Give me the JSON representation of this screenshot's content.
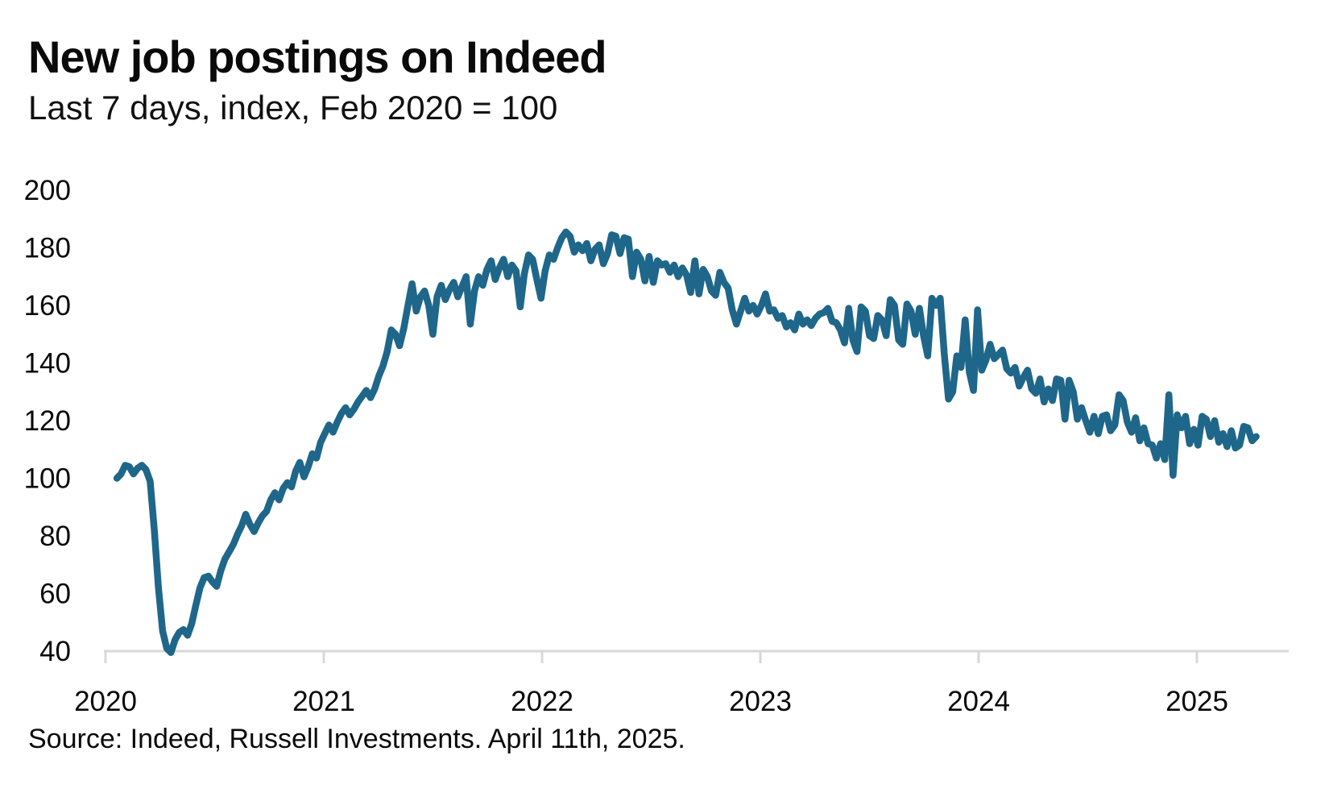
{
  "header": {
    "title": "New job postings on Indeed",
    "subtitle": "Last 7 days, index, Feb 2020 = 100"
  },
  "footer": {
    "source": "Source: Indeed, Russell Investments. April 11th, 2025."
  },
  "colors": {
    "line": "#1F678A",
    "axis": "#D8D8D8",
    "text": "#0A0A0A"
  },
  "chart_data": {
    "type": "line",
    "title": "New job postings on Indeed",
    "subtitle": "Last 7 days, index, Feb 2020 = 100",
    "xlabel": "",
    "ylabel": "",
    "grid": false,
    "legend": null,
    "xlim": [
      2020,
      2025.45
    ],
    "ylim": [
      40,
      200
    ],
    "yticks": [
      40,
      60,
      80,
      100,
      120,
      140,
      160,
      180,
      200
    ],
    "xticks": [
      2020,
      2021,
      2022,
      2023,
      2024,
      2025
    ],
    "series_name": "New job postings index (7-day, Feb 2020 = 100)",
    "x_start": 2020.052,
    "x_step": 0.01905,
    "values": [
      100,
      101.5,
      104.5,
      104,
      101.5,
      103.5,
      104.5,
      103,
      99,
      82,
      62,
      47,
      41,
      39.5,
      44,
      46.5,
      47.5,
      45.5,
      49.5,
      56,
      62,
      65.5,
      66,
      64,
      62.5,
      68,
      72,
      74.5,
      77,
      80.5,
      83.5,
      87.5,
      84,
      81.5,
      84.5,
      87,
      88.5,
      92.5,
      95,
      92.5,
      96.5,
      98.5,
      97,
      102.5,
      105.5,
      100.5,
      104,
      108.5,
      107,
      112.5,
      115.5,
      118.5,
      116,
      119.5,
      122.5,
      124.5,
      122,
      124,
      126.5,
      128.5,
      130.5,
      128,
      131,
      135.5,
      139,
      144,
      151.5,
      150,
      146,
      152,
      160,
      167.5,
      158,
      163,
      165,
      160,
      150,
      163,
      167,
      162,
      165.5,
      168,
      163,
      166.5,
      170,
      153.5,
      165,
      170,
      167,
      172.5,
      175.5,
      169,
      173,
      176,
      170,
      174,
      172,
      159.5,
      171,
      177.5,
      176,
      169,
      162.5,
      172,
      177.5,
      176,
      180,
      183.5,
      185.5,
      184,
      178.5,
      181,
      179,
      181.5,
      175.5,
      179.5,
      181,
      174.5,
      178,
      184.5,
      184,
      178,
      183.5,
      183,
      170,
      178.5,
      176,
      168.5,
      177,
      168,
      175.5,
      174,
      174.5,
      171.5,
      174,
      170,
      173,
      170.5,
      164.5,
      175.5,
      164,
      172.5,
      170,
      165,
      163.5,
      171.5,
      168,
      166,
      158.5,
      153.5,
      158,
      162.5,
      158,
      160,
      157,
      160,
      164,
      158,
      158.5,
      155.5,
      156.5,
      152.5,
      154,
      151.5,
      157,
      153.5,
      155,
      153,
      155.5,
      157,
      157.5,
      159,
      154.5,
      154,
      151.5,
      147,
      159,
      148,
      144,
      159.5,
      158,
      149.5,
      148.5,
      156.5,
      155,
      149.5,
      162,
      160,
      148,
      146.5,
      160.5,
      158,
      150,
      159,
      149.5,
      142.5,
      162.5,
      160,
      162.5,
      143,
      127.5,
      130,
      142.5,
      138.5,
      155,
      137,
      130.5,
      158.5,
      137.5,
      141,
      146.5,
      141.5,
      143,
      144.5,
      138,
      136.5,
      138.5,
      132,
      135,
      137.5,
      131,
      129.5,
      134.5,
      126.5,
      131,
      127,
      134.5,
      134,
      120.5,
      134,
      130,
      120.5,
      124.5,
      120,
      116,
      121.5,
      115.5,
      121.5,
      122,
      116.5,
      118.5,
      129,
      127,
      119.5,
      116,
      121,
      113,
      117.5,
      112,
      111.5,
      107,
      112,
      106.5,
      129,
      101,
      122,
      117.5,
      121.5,
      112,
      117,
      111.5,
      121.5,
      120.5,
      114.5,
      120,
      112.5,
      115.5,
      111,
      116.5,
      110.5,
      111.5,
      118,
      117.5,
      113,
      114.5
    ]
  }
}
